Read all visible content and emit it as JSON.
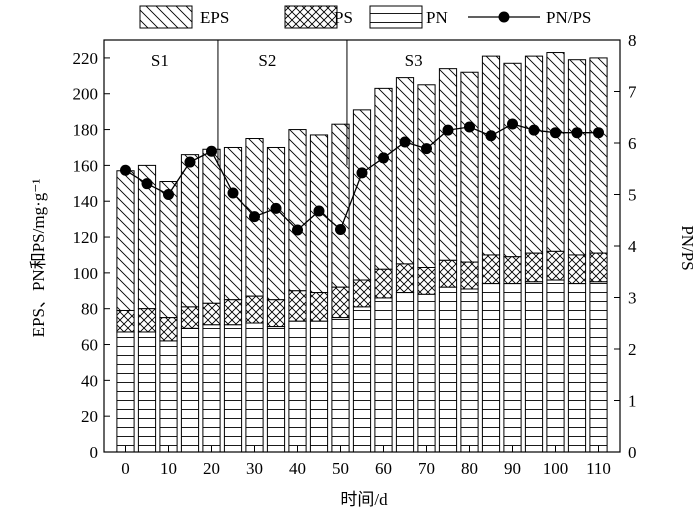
{
  "chart_data": {
    "type": "bar",
    "subtype": "stacked bar with line on secondary axis",
    "x": [
      0,
      5,
      10,
      15,
      20,
      25,
      30,
      35,
      40,
      45,
      50,
      55,
      60,
      65,
      70,
      75,
      80,
      85,
      90,
      95,
      100,
      105,
      110
    ],
    "series": [
      {
        "name": "PN",
        "kind": "bar",
        "pattern": "horizontal-lines",
        "values": [
          67,
          67,
          62,
          69,
          71,
          71,
          72,
          70,
          73,
          73,
          75,
          81,
          86,
          89,
          88,
          92,
          91,
          94,
          94,
          95,
          96,
          94,
          95
        ]
      },
      {
        "name": "PS",
        "kind": "bar",
        "pattern": "crosshatch",
        "values": [
          12,
          13,
          13,
          12,
          12,
          14,
          15,
          15,
          17,
          16,
          17,
          15,
          16,
          16,
          15,
          15,
          15,
          16,
          15,
          16,
          16,
          16,
          16
        ]
      },
      {
        "name": "EPS",
        "kind": "bar",
        "pattern": "diagonal-lines",
        "values": [
          157,
          160,
          151,
          166,
          169,
          170,
          175,
          170,
          180,
          177,
          183,
          191,
          203,
          209,
          205,
          214,
          212,
          221,
          217,
          221,
          223,
          219,
          220
        ]
      },
      {
        "name": "PN/PS",
        "kind": "line",
        "marker": "filled-circle",
        "axis": "right",
        "values": [
          5.47,
          5.21,
          5.0,
          5.63,
          5.84,
          5.03,
          4.57,
          4.73,
          4.31,
          4.68,
          4.32,
          5.42,
          5.71,
          6.02,
          5.89,
          6.25,
          6.31,
          6.14,
          6.37,
          6.25,
          6.2,
          6.2,
          6.2
        ]
      }
    ],
    "xlabel": "时间/d",
    "ylabel": "EPS、PN和PS/mg·g⁻¹",
    "y2label": "PN/PS",
    "xticks": [
      0,
      10,
      20,
      30,
      40,
      50,
      60,
      70,
      80,
      90,
      100,
      110
    ],
    "ylim": [
      0,
      230
    ],
    "yticks": [
      0,
      20,
      40,
      60,
      80,
      100,
      120,
      140,
      160,
      180,
      200,
      220
    ],
    "y2lim": [
      0,
      8
    ],
    "y2ticks": [
      0,
      1,
      2,
      3,
      4,
      5,
      6,
      7,
      8
    ],
    "xlim": [
      -5,
      115
    ],
    "stage_dividers": [
      21.5,
      51.5
    ],
    "stages": [
      {
        "label": "S1",
        "x_center": 8
      },
      {
        "label": "S2",
        "x_center": 33
      },
      {
        "label": "S3",
        "x_center": 67
      }
    ],
    "legend": {
      "position": "top",
      "items": [
        "EPS",
        "PS",
        "PN",
        "PN/PS"
      ]
    },
    "grid": false
  }
}
